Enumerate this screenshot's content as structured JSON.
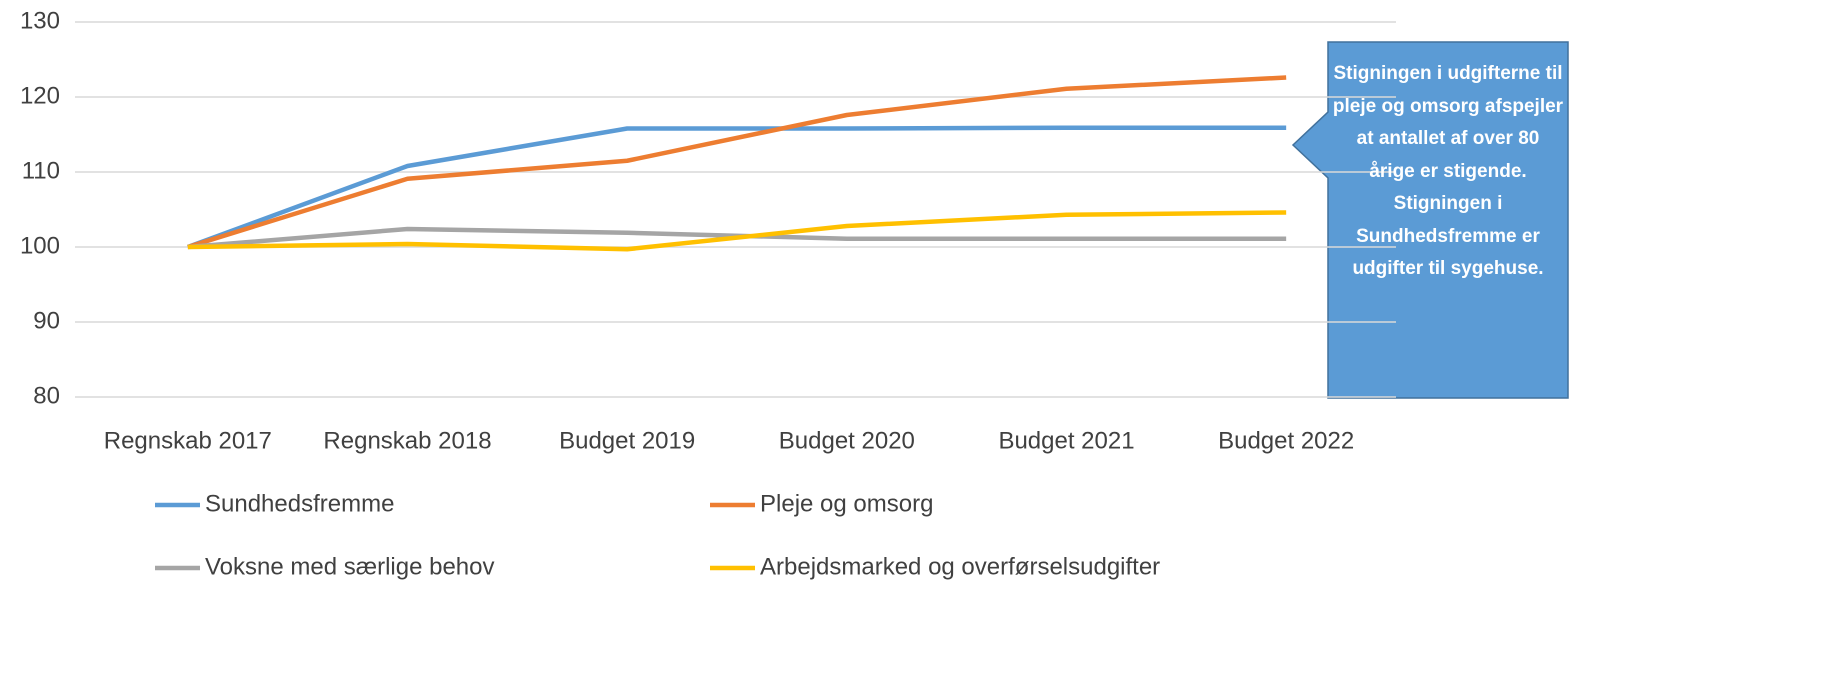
{
  "chart_data": {
    "type": "line",
    "categories": [
      "Regnskab 2017",
      "Regnskab 2018",
      "Budget 2019",
      "Budget 2020",
      "Budget 2021",
      "Budget 2022"
    ],
    "series": [
      {
        "name": "Sundhedsfremme",
        "color": "#5b9bd5",
        "values": [
          100,
          110.8,
          115.8,
          115.8,
          115.9,
          115.9
        ]
      },
      {
        "name": "Pleje og omsorg",
        "color": "#ed7d31",
        "values": [
          100,
          109.1,
          111.5,
          117.6,
          121.1,
          122.6
        ]
      },
      {
        "name": "Voksne med særlige behov",
        "color": "#a5a5a5",
        "values": [
          100,
          102.4,
          101.9,
          101.1,
          101.1,
          101.1
        ]
      },
      {
        "name": "Arbejdsmarked og overførselsudgifter",
        "color": "#ffc000",
        "values": [
          100,
          100.4,
          99.7,
          102.8,
          104.3,
          104.6
        ]
      }
    ],
    "ylim": [
      80,
      130
    ],
    "yticks": [
      80,
      90,
      100,
      110,
      120,
      130
    ],
    "grid": true,
    "annotation": "Stigningen i udgifterne til pleje og omsorg afspejler at antallet af over 80 årige er stigende. Stigningen i Sundhedsfremme er udgifter til sygehuse."
  }
}
